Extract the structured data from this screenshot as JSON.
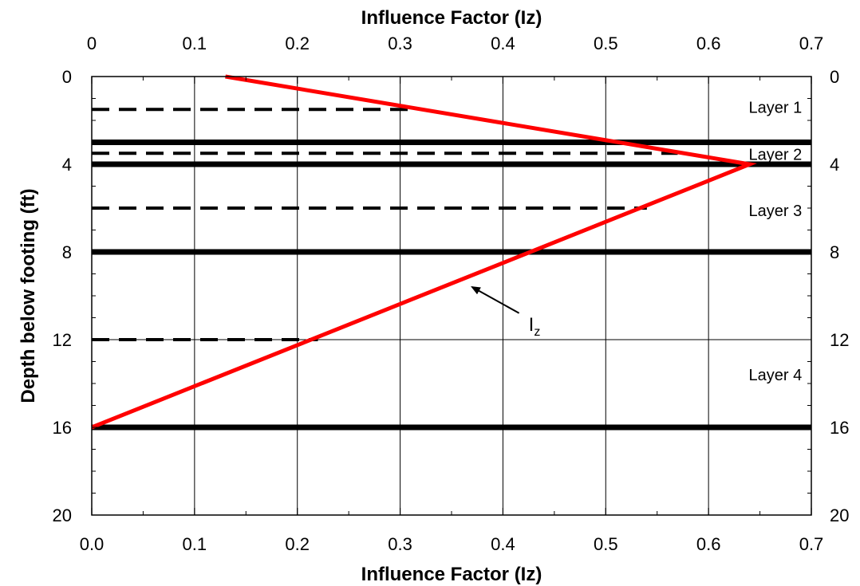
{
  "chart_data": {
    "type": "line",
    "title": "",
    "xlabel_top": "Influence Factor (Iz)",
    "xlabel_bottom": "Influence Factor (Iz)",
    "ylabel": "Depth below footing (ft)",
    "xlim": [
      0,
      0.7
    ],
    "ylim": [
      0,
      20
    ],
    "y_inverted": true,
    "grid": true,
    "x_ticks_top": [
      "0",
      "0.1",
      "0.2",
      "0.3",
      "0.4",
      "0.5",
      "0.6",
      "0.7"
    ],
    "x_ticks_bottom": [
      "0.0",
      "0.1",
      "0.2",
      "0.3",
      "0.4",
      "0.5",
      "0.6",
      "0.7"
    ],
    "x_tick_values": [
      0,
      0.1,
      0.2,
      0.3,
      0.4,
      0.5,
      0.6,
      0.7
    ],
    "y_ticks": [
      "0",
      "4",
      "8",
      "12",
      "16",
      "20"
    ],
    "y_tick_values": [
      0,
      4,
      8,
      12,
      16,
      20
    ],
    "series": [
      {
        "name": "Iz",
        "color": "#ff0000",
        "x": [
          0.13,
          0.64,
          0.0
        ],
        "y": [
          0,
          4,
          16
        ]
      }
    ],
    "layer_boundaries": {
      "color": "#000000",
      "style": "solid",
      "depths": [
        3,
        4,
        8,
        16
      ]
    },
    "layer_midpoints": {
      "color": "#000000",
      "style": "dashed",
      "lines": [
        {
          "depth": 1.5,
          "x_end": 0.31
        },
        {
          "depth": 3.5,
          "x_end": 0.57
        },
        {
          "depth": 6,
          "x_end": 0.54
        },
        {
          "depth": 12,
          "x_end": 0.22
        }
      ]
    },
    "annotations": [
      {
        "text": "Layer 1",
        "x": 0.665,
        "y": 1.4
      },
      {
        "text": "Layer 2",
        "x": 0.665,
        "y": 3.55
      },
      {
        "text": "Layer 3",
        "x": 0.665,
        "y": 6.1
      },
      {
        "text": "Layer 4",
        "x": 0.665,
        "y": 13.6
      }
    ],
    "iz_label": {
      "main": "I",
      "sub": "z",
      "x": 0.425,
      "y": 11.3,
      "arrow_to": [
        0.37,
        9.6
      ]
    }
  }
}
